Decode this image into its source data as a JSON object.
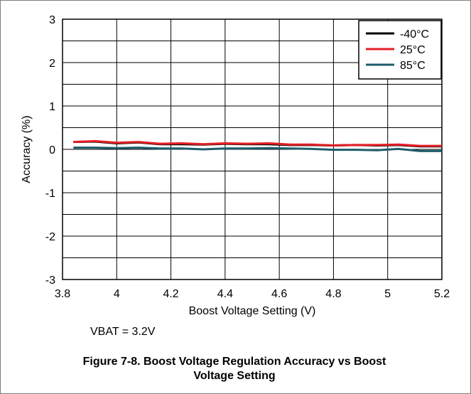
{
  "chart_data": {
    "type": "line",
    "title": "",
    "xlabel": "Boost Voltage Setting (V)",
    "ylabel": "Accuracy (%)",
    "xlim": [
      3.8,
      5.2
    ],
    "ylim": [
      -3,
      3
    ],
    "x_ticks": [
      "3.8",
      "4",
      "4.2",
      "4.4",
      "4.6",
      "4.8",
      "5",
      "5.2"
    ],
    "y_ticks": [
      "3",
      "2",
      "1",
      "0",
      "-1",
      "-2",
      "-3"
    ],
    "grid": true,
    "legend_position": "top-right",
    "x": [
      3.84,
      3.92,
      4.0,
      4.08,
      4.16,
      4.24,
      4.32,
      4.4,
      4.48,
      4.56,
      4.64,
      4.72,
      4.8,
      4.88,
      4.96,
      5.04,
      5.12,
      5.2
    ],
    "series": [
      {
        "name": "-40°C",
        "color": "#000000",
        "values": [
          0.17,
          0.18,
          0.14,
          0.16,
          0.12,
          0.12,
          0.11,
          0.13,
          0.12,
          0.12,
          0.1,
          0.1,
          0.09,
          0.1,
          0.09,
          0.1,
          0.07,
          0.07
        ]
      },
      {
        "name": "25°C",
        "color": "#e31e24",
        "values": [
          0.17,
          0.19,
          0.15,
          0.17,
          0.13,
          0.14,
          0.12,
          0.14,
          0.13,
          0.14,
          0.11,
          0.11,
          0.09,
          0.1,
          0.1,
          0.11,
          0.08,
          0.08
        ]
      },
      {
        "name": "85°C",
        "color": "#1d5d6b",
        "values": [
          0.04,
          0.04,
          0.03,
          0.04,
          0.02,
          0.02,
          0.0,
          0.02,
          0.02,
          0.03,
          0.02,
          0.01,
          -0.01,
          -0.01,
          -0.02,
          0.01,
          -0.04,
          -0.04
        ]
      }
    ]
  },
  "note": "VBAT = 3.2V",
  "caption_line1": "Figure 7-8. Boost Voltage Regulation Accuracy vs Boost",
  "caption_line2": "Voltage Setting"
}
